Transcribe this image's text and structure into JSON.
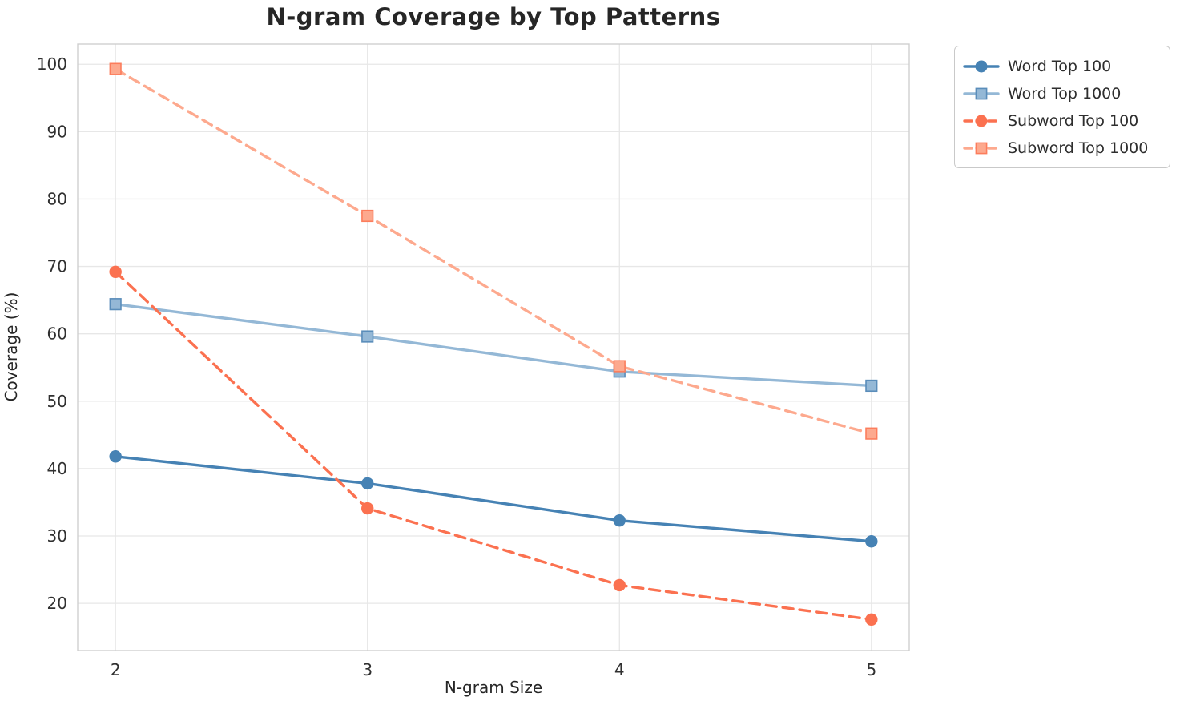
{
  "chart_data": {
    "type": "line",
    "title": "N-gram Coverage by Top Patterns",
    "xlabel": "N-gram Size",
    "ylabel": "Coverage (%)",
    "x": [
      2,
      3,
      4,
      5
    ],
    "xticks": [
      2,
      3,
      4,
      5
    ],
    "yticks": [
      20,
      30,
      40,
      50,
      60,
      70,
      80,
      90,
      100
    ],
    "xlim": [
      1.85,
      5.15
    ],
    "ylim": [
      13,
      103
    ],
    "grid": true,
    "legend_position": "outside-top-right",
    "series": [
      {
        "name": "Word Top 100",
        "values": [
          41.8,
          37.8,
          32.3,
          29.2
        ],
        "color": "#4682B4",
        "edge": "#4682B4",
        "marker": "circle",
        "dash": false
      },
      {
        "name": "Word Top 1000",
        "values": [
          64.4,
          59.6,
          54.4,
          52.3
        ],
        "color": "#94B8D6",
        "edge": "#5A8DBA",
        "marker": "square",
        "dash": false
      },
      {
        "name": "Subword Top 100",
        "values": [
          69.2,
          34.1,
          22.7,
          17.6
        ],
        "color": "#FB7150",
        "edge": "#FB7150",
        "marker": "circle",
        "dash": true
      },
      {
        "name": "Subword Top 1000",
        "values": [
          99.3,
          77.5,
          55.2,
          45.2
        ],
        "color": "#FDA98E",
        "edge": "#FC7D5C",
        "marker": "square",
        "dash": true
      }
    ]
  }
}
